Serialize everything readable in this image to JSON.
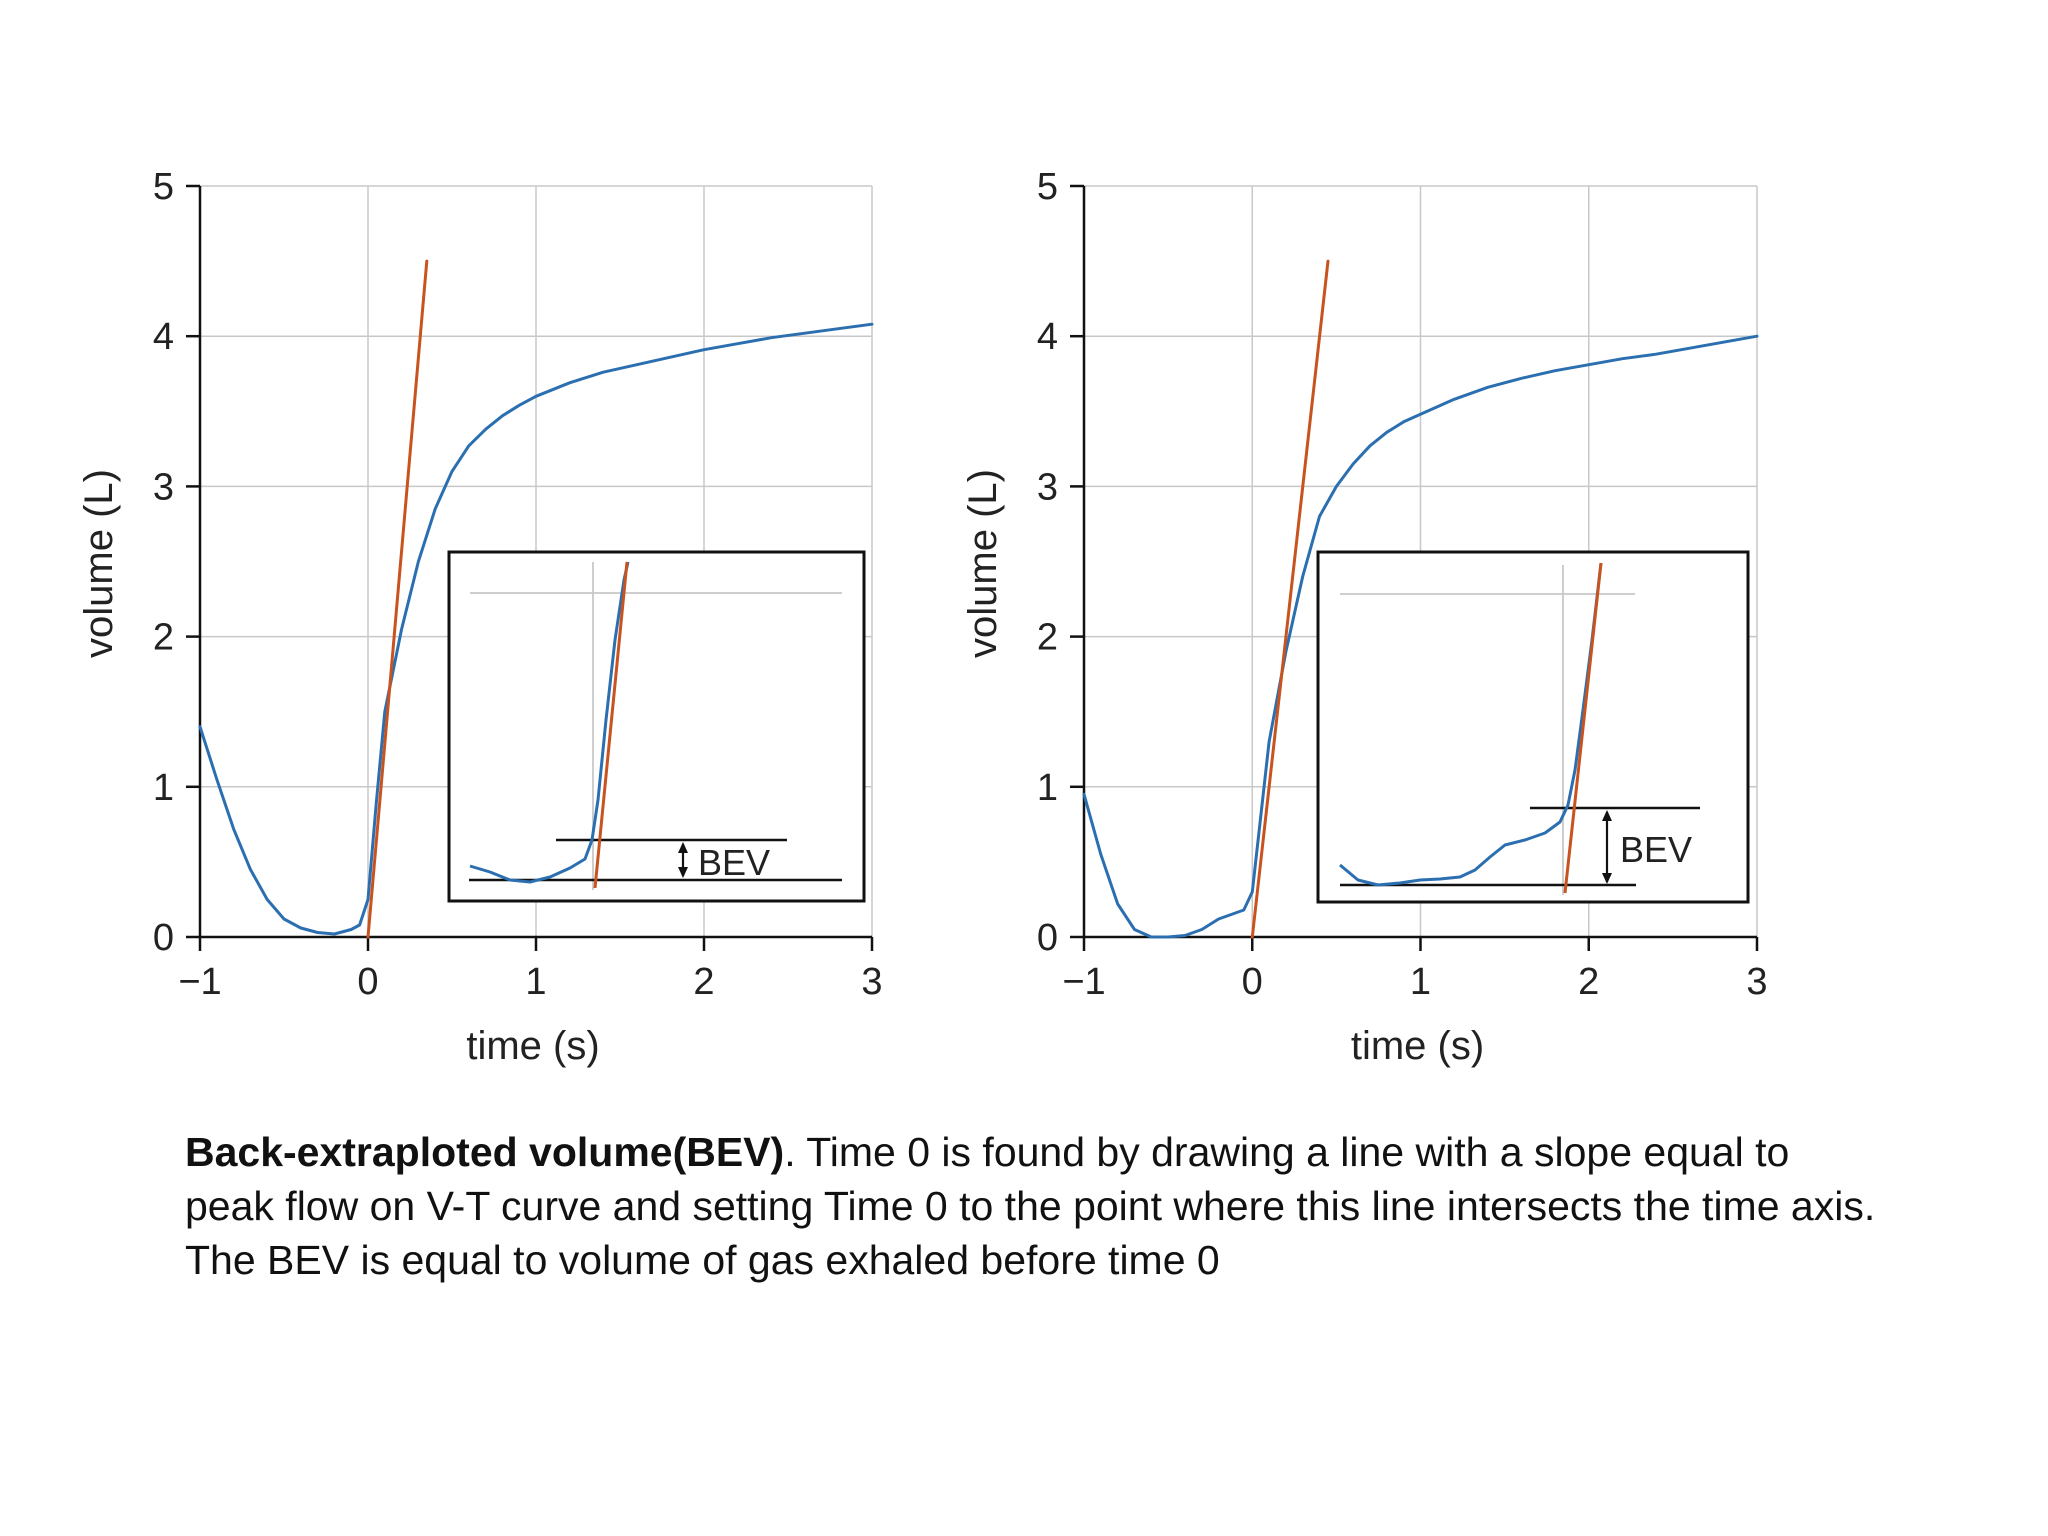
{
  "chart_data": [
    {
      "type": "line",
      "xlabel": "time (s)",
      "ylabel": "volume (L)",
      "xlim": [
        -1,
        3
      ],
      "ylim": [
        0,
        5
      ],
      "xticks": [
        -1,
        0,
        1,
        2,
        3
      ],
      "xtick_labels": [
        "−1",
        "0",
        "1",
        "2",
        "3"
      ],
      "yticks": [
        0,
        1,
        2,
        3,
        4,
        5
      ],
      "ytick_labels": [
        "0",
        "1",
        "2",
        "3",
        "4",
        "5"
      ],
      "grid": true,
      "series": [
        {
          "color": "#2b6fb0",
          "x": [
            -1,
            -0.9,
            -0.8,
            -0.7,
            -0.6,
            -0.5,
            -0.4,
            -0.3,
            -0.2,
            -0.1,
            -0.05,
            0,
            0.05,
            0.1,
            0.2,
            0.3,
            0.4,
            0.5,
            0.6,
            0.7,
            0.8,
            0.9,
            1.0,
            1.2,
            1.4,
            1.6,
            1.8,
            2.0,
            2.2,
            2.4,
            2.6,
            2.8,
            3.0
          ],
          "y": [
            1.4,
            1.05,
            0.72,
            0.45,
            0.25,
            0.12,
            0.06,
            0.03,
            0.02,
            0.05,
            0.08,
            0.25,
            0.9,
            1.5,
            2.05,
            2.5,
            2.85,
            3.1,
            3.27,
            3.38,
            3.47,
            3.54,
            3.6,
            3.69,
            3.76,
            3.81,
            3.86,
            3.91,
            3.95,
            3.99,
            4.02,
            4.05,
            4.08
          ]
        },
        {
          "color": "#c8531f",
          "x": [
            0,
            0.35
          ],
          "y": [
            0,
            4.5
          ]
        }
      ],
      "inset": {
        "label": "BEV"
      }
    },
    {
      "type": "line",
      "xlabel": "time (s)",
      "ylabel": "volume (L)",
      "xlim": [
        -1,
        3
      ],
      "ylim": [
        0,
        5
      ],
      "xticks": [
        -1,
        0,
        1,
        2,
        3
      ],
      "xtick_labels": [
        "−1",
        "0",
        "1",
        "2",
        "3"
      ],
      "yticks": [
        0,
        1,
        2,
        3,
        4,
        5
      ],
      "ytick_labels": [
        "0",
        "1",
        "2",
        "3",
        "4",
        "5"
      ],
      "grid": true,
      "series": [
        {
          "color": "#2b6fb0",
          "x": [
            -1,
            -0.9,
            -0.8,
            -0.7,
            -0.6,
            -0.5,
            -0.4,
            -0.3,
            -0.2,
            -0.1,
            -0.05,
            0,
            0.05,
            0.1,
            0.2,
            0.3,
            0.4,
            0.5,
            0.6,
            0.7,
            0.8,
            0.9,
            1.0,
            1.2,
            1.4,
            1.6,
            1.8,
            2.0,
            2.2,
            2.4,
            2.6,
            2.8,
            3.0
          ],
          "y": [
            0.95,
            0.55,
            0.22,
            0.05,
            0.0,
            0.0,
            0.01,
            0.05,
            0.12,
            0.16,
            0.18,
            0.3,
            0.8,
            1.3,
            1.9,
            2.4,
            2.8,
            3.0,
            3.15,
            3.27,
            3.36,
            3.43,
            3.48,
            3.58,
            3.66,
            3.72,
            3.77,
            3.81,
            3.85,
            3.88,
            3.92,
            3.96,
            4.0
          ]
        },
        {
          "color": "#c8531f",
          "x": [
            0,
            0.45
          ],
          "y": [
            0,
            4.5
          ]
        }
      ],
      "inset": {
        "label": "BEV"
      }
    }
  ],
  "caption": {
    "bold": "Back-extraploted volume(BEV)",
    "rest": ". Time 0 is found by drawing a line with a slope equal to peak flow on V-T curve and setting Time 0 to the point where this line intersects the time axis. The BEV is equal to volume of gas exhaled before time 0"
  }
}
